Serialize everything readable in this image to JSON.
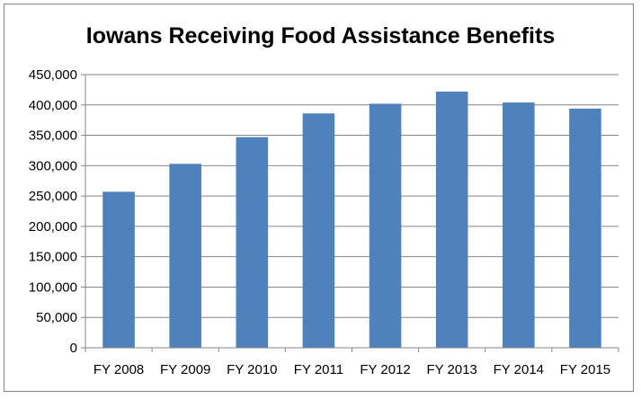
{
  "chart_data": {
    "type": "bar",
    "title": "Iowans Receiving Food Assistance Benefits",
    "xlabel": "",
    "ylabel": "",
    "categories": [
      "FY 2008",
      "FY 2009",
      "FY 2010",
      "FY 2011",
      "FY 2012",
      "FY 2013",
      "FY 2014",
      "FY 2015"
    ],
    "values": [
      257000,
      303000,
      347000,
      386000,
      402000,
      422000,
      404000,
      394000
    ],
    "ylim": [
      0,
      450000
    ],
    "yticks": [
      0,
      50000,
      100000,
      150000,
      200000,
      250000,
      300000,
      350000,
      400000,
      450000
    ],
    "ytick_labels": [
      "0",
      "50,000",
      "100,000",
      "150,000",
      "200,000",
      "250,000",
      "300,000",
      "350,000",
      "400,000",
      "450,000"
    ],
    "grid": true,
    "legend": "none",
    "bar_color": "#4F81BD"
  }
}
